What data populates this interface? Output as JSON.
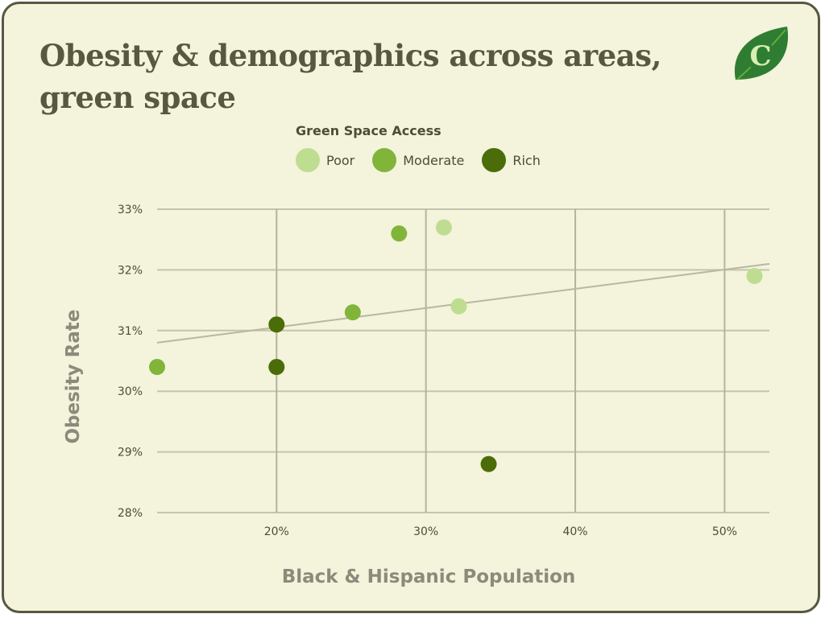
{
  "title": "Obesity & demographics across areas, green space",
  "logo": {
    "letter": "C",
    "icon": "leaf-icon",
    "colors": [
      "#2f7d32",
      "#69ab3f",
      "#d7efb0"
    ]
  },
  "legend": {
    "title": "Green Space Access",
    "items": [
      {
        "label": "Poor",
        "color": "#bfdd90"
      },
      {
        "label": "Moderate",
        "color": "#80b53a"
      },
      {
        "label": "Rich",
        "color": "#4a6d09"
      }
    ]
  },
  "chart_data": {
    "type": "scatter",
    "xlabel": "Black & Hispanic Population",
    "ylabel": "Obesity Rate",
    "xlim": [
      12,
      53
    ],
    "ylim": [
      28,
      33
    ],
    "x_ticks": [
      {
        "value": 20,
        "label": "20%"
      },
      {
        "value": 30,
        "label": "30%"
      },
      {
        "value": 40,
        "label": "40%"
      },
      {
        "value": 50,
        "label": "50%"
      }
    ],
    "y_ticks": [
      {
        "value": 28,
        "label": "28%"
      },
      {
        "value": 29,
        "label": "29%"
      },
      {
        "value": 30,
        "label": "30%"
      },
      {
        "value": 31,
        "label": "31%"
      },
      {
        "value": 32,
        "label": "32%"
      },
      {
        "value": 33,
        "label": "33%"
      }
    ],
    "grid": true,
    "legend_position": "top",
    "series": [
      {
        "name": "Poor",
        "color": "#bfdd90",
        "points": [
          [
            31.2,
            32.7
          ],
          [
            32.2,
            31.4
          ],
          [
            52.0,
            31.9
          ]
        ]
      },
      {
        "name": "Moderate",
        "color": "#80b53a",
        "points": [
          [
            12.0,
            30.4
          ],
          [
            25.1,
            31.3
          ],
          [
            28.2,
            32.6
          ]
        ]
      },
      {
        "name": "Rich",
        "color": "#4a6d09",
        "points": [
          [
            20.0,
            31.1
          ],
          [
            20.0,
            30.4
          ],
          [
            34.2,
            28.8
          ]
        ]
      }
    ],
    "trendline": {
      "color": "#b7b8a0",
      "points": [
        [
          12,
          30.8
        ],
        [
          53,
          32.1
        ]
      ]
    }
  }
}
